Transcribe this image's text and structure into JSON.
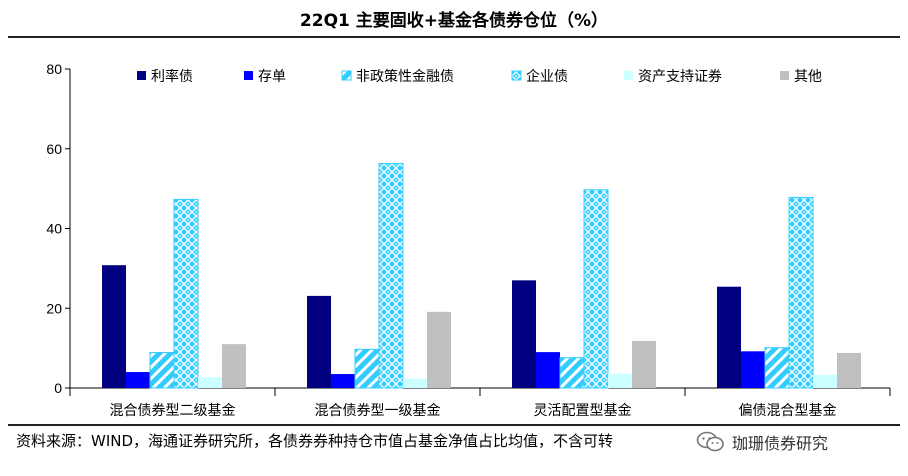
{
  "header": {
    "title": "22Q1 主要固收+基金各债券仓位（%）"
  },
  "footer": {
    "source": "资料来源：WIND，海通证券研究所，各债券券种持仓市值占基金净值占比均值，不含可转"
  },
  "watermark": {
    "text": "珈珊债券研究",
    "icon": "wechat-icon"
  },
  "chart_data": {
    "type": "bar",
    "title": "22Q1 主要固收+基金各债券仓位（%）",
    "xlabel": "",
    "ylabel": "",
    "ylim": [
      0,
      80
    ],
    "yticks": [
      0,
      20,
      40,
      60,
      80
    ],
    "grid": false,
    "legend_position": "top",
    "categories": [
      "混合债券型二级基金",
      "混合债券型一级基金",
      "灵活配置型基金",
      "偏债混合型基金"
    ],
    "series": [
      {
        "name": "利率债",
        "values": [
          30.8,
          23.1,
          27.0,
          25.4
        ],
        "color": "#000080",
        "pattern": "solid"
      },
      {
        "name": "存单",
        "values": [
          4.0,
          3.5,
          9.0,
          9.2
        ],
        "color": "#0000ff",
        "pattern": "solid"
      },
      {
        "name": "非政策性金融债",
        "values": [
          8.9,
          9.7,
          7.6,
          10.1
        ],
        "color": "#33ccff",
        "pattern": "diagonal"
      },
      {
        "name": "企业债",
        "values": [
          47.3,
          56.3,
          49.7,
          47.8
        ],
        "color": "#33ccff",
        "pattern": "weave"
      },
      {
        "name": "资产支持证券",
        "values": [
          2.7,
          2.3,
          3.6,
          3.3
        ],
        "color": "#ccffff",
        "pattern": "solid"
      },
      {
        "name": "其他",
        "values": [
          11.0,
          19.1,
          11.8,
          8.8
        ],
        "color": "#c0c0c0",
        "pattern": "solid"
      }
    ]
  }
}
